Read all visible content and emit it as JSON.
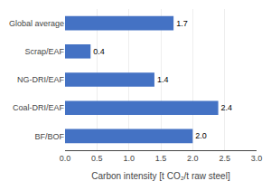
{
  "chart_data": {
    "type": "bar",
    "orientation": "horizontal",
    "categories": [
      "BF/BOF",
      "Coal-DRI/EAF",
      "NG-DRI/EAF",
      "Scrap/EAF",
      "Global average"
    ],
    "values": [
      2.0,
      2.4,
      1.4,
      0.4,
      1.7
    ],
    "value_labels": [
      "2.0",
      "2.4",
      "1.4",
      "0.4",
      "1.7"
    ],
    "data_labels": true,
    "color": "#4472C4",
    "xlabel": "Carbon intensity [t CO₂/t raw steel]",
    "xlim": [
      0,
      3.0
    ],
    "xticks": [
      {
        "value": 0.0,
        "label": "0.0"
      },
      0.5,
      {
        "value": 1.0,
        "label": "1.0"
      },
      1.5,
      {
        "value": 2.0,
        "label": "2.0"
      },
      2.5,
      {
        "value": 3.0,
        "label": "3.0"
      }
    ],
    "grid": true
  }
}
